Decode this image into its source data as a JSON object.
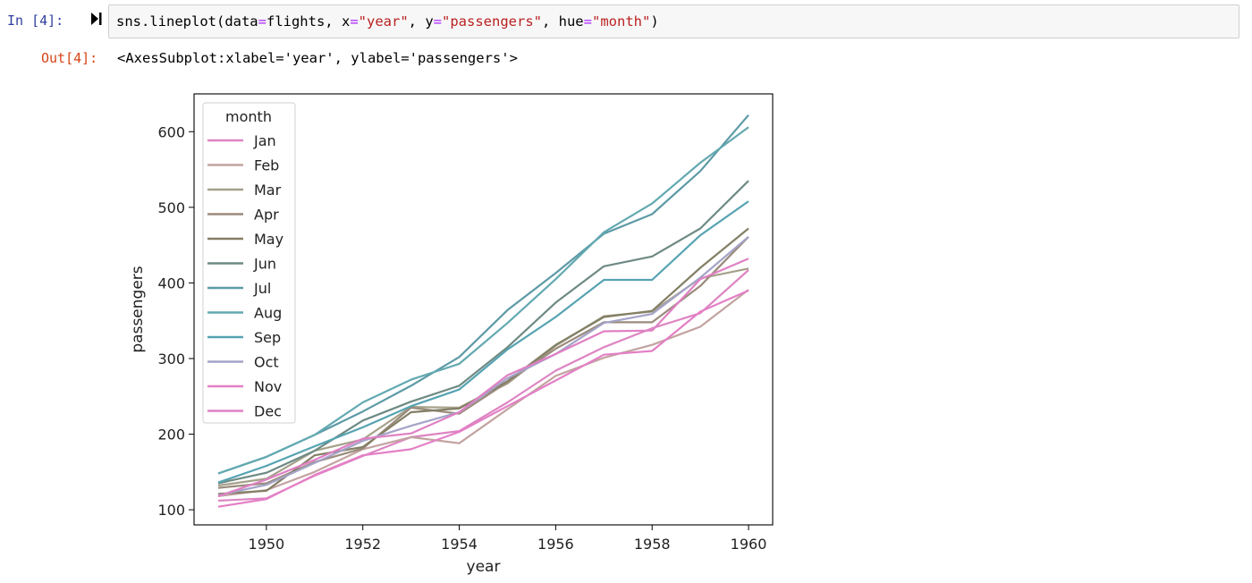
{
  "input_cell": {
    "prompt": "In [4]:",
    "code": {
      "fn": "sns.lineplot(data",
      "eq1": "=",
      "arg1": "flights, x",
      "eq2": "=",
      "str1": "\"year\"",
      "sep1": ", y",
      "eq3": "=",
      "str2": "\"passengers\"",
      "sep2": ", hue",
      "eq4": "=",
      "str3": "\"month\"",
      "close": ")"
    }
  },
  "output_cell": {
    "prompt": "Out[4]:",
    "text": "<AxesSubplot:xlabel='year', ylabel='passengers'>"
  },
  "chart_data": {
    "type": "line",
    "xlabel": "year",
    "ylabel": "passengers",
    "xlim": [
      1948.5,
      1960.5
    ],
    "ylim": [
      80,
      650
    ],
    "xticks": [
      1950,
      1952,
      1954,
      1956,
      1958,
      1960
    ],
    "yticks": [
      100,
      200,
      300,
      400,
      500,
      600
    ],
    "grid": false,
    "legend": {
      "title": "month",
      "placement": "upper-left"
    },
    "x": [
      1949,
      1950,
      1951,
      1952,
      1953,
      1954,
      1955,
      1956,
      1957,
      1958,
      1959,
      1960
    ],
    "series": [
      {
        "name": "Jan",
        "color": "#dd85c2",
        "values": [
          112,
          115,
          145,
          171,
          196,
          204,
          242,
          284,
          315,
          340,
          360,
          417
        ]
      },
      {
        "name": "Feb",
        "color": "#c2a3a0",
        "values": [
          118,
          126,
          150,
          180,
          196,
          188,
          233,
          277,
          301,
          318,
          342,
          391
        ]
      },
      {
        "name": "Mar",
        "color": "#a5a08a",
        "values": [
          132,
          141,
          178,
          193,
          236,
          235,
          267,
          317,
          356,
          362,
          406,
          419
        ]
      },
      {
        "name": "Apr",
        "color": "#9a8b7c",
        "values": [
          129,
          135,
          163,
          181,
          235,
          227,
          269,
          313,
          348,
          348,
          396,
          461
        ]
      },
      {
        "name": "May",
        "color": "#837f65",
        "values": [
          121,
          125,
          172,
          183,
          229,
          234,
          270,
          318,
          355,
          363,
          420,
          472
        ]
      },
      {
        "name": "Jun",
        "color": "#6e8a84",
        "values": [
          135,
          149,
          178,
          218,
          243,
          264,
          315,
          374,
          422,
          435,
          472,
          535
        ]
      },
      {
        "name": "Jul",
        "color": "#5d9aa6",
        "values": [
          148,
          170,
          199,
          230,
          264,
          302,
          364,
          413,
          465,
          491,
          548,
          622
        ]
      },
      {
        "name": "Aug",
        "color": "#63a9b1",
        "values": [
          148,
          170,
          199,
          242,
          272,
          293,
          347,
          405,
          467,
          505,
          559,
          606
        ]
      },
      {
        "name": "Sep",
        "color": "#56a3b2",
        "values": [
          136,
          158,
          184,
          209,
          237,
          259,
          312,
          355,
          404,
          404,
          463,
          508
        ]
      },
      {
        "name": "Oct",
        "color": "#a4a3c8",
        "values": [
          119,
          133,
          162,
          191,
          211,
          229,
          274,
          306,
          347,
          359,
          407,
          461
        ]
      },
      {
        "name": "Nov",
        "color": "#e47fc6",
        "values": [
          104,
          114,
          146,
          172,
          180,
          203,
          237,
          271,
          305,
          310,
          362,
          390
        ]
      },
      {
        "name": "Dec",
        "color": "#e080c4",
        "values": [
          118,
          140,
          166,
          194,
          201,
          229,
          278,
          306,
          336,
          337,
          405,
          432
        ]
      }
    ]
  }
}
